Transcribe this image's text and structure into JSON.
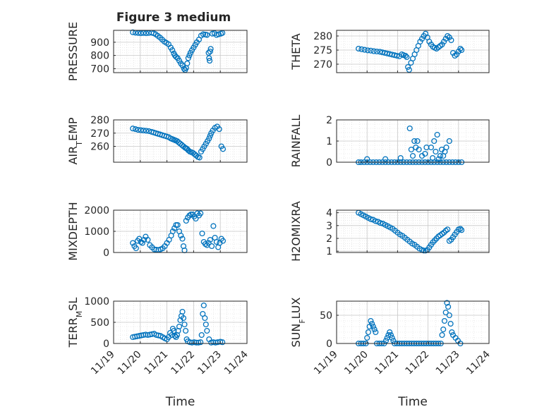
{
  "title": "Figure 3 medium",
  "x_tick_labels": [
    "11/19",
    "11/20",
    "11/21",
    "11/22",
    "11/23",
    "11/24"
  ],
  "x_label": "Time",
  "marker_color": "#0072BD",
  "chart_data": [
    {
      "type": "scatter",
      "ylabel": "PRESSURE",
      "ylim": [
        670,
        990
      ],
      "yticks": [
        700,
        800,
        900
      ],
      "xlim": [
        0,
        5
      ],
      "x": [
        0.72,
        0.82,
        0.92,
        1.02,
        1.12,
        1.22,
        1.32,
        1.42,
        1.5,
        1.58,
        1.66,
        1.74,
        1.82,
        1.9,
        1.98,
        2.06,
        2.14,
        2.2,
        2.26,
        2.3,
        2.34,
        2.4,
        2.46,
        2.52,
        2.58,
        2.64,
        2.68,
        2.72,
        2.76,
        2.8,
        2.84,
        2.88,
        2.94,
        3.0,
        3.06,
        3.12,
        3.2,
        3.28,
        3.36,
        3.44,
        3.5,
        3.56,
        3.58,
        3.6,
        3.62,
        3.64,
        3.7,
        3.78,
        3.86,
        3.94,
        4.02,
        4.08
      ],
      "y": [
        975,
        972,
        970,
        968,
        970,
        968,
        970,
        972,
        968,
        960,
        948,
        935,
        920,
        905,
        895,
        885,
        860,
        840,
        815,
        800,
        790,
        780,
        760,
        740,
        725,
        700,
        690,
        705,
        740,
        780,
        800,
        820,
        840,
        860,
        880,
        900,
        920,
        950,
        960,
        958,
        955,
        820,
        780,
        760,
        830,
        850,
        965,
        968,
        955,
        960,
        965,
        970
      ]
    },
    {
      "type": "scatter",
      "ylabel": "THETA",
      "ylim": [
        267,
        282
      ],
      "yticks": [
        270,
        275,
        280
      ],
      "xlim": [
        0,
        5
      ],
      "x": [
        0.72,
        0.82,
        0.92,
        1.02,
        1.12,
        1.22,
        1.32,
        1.42,
        1.5,
        1.58,
        1.66,
        1.74,
        1.82,
        1.9,
        1.98,
        2.06,
        2.14,
        2.2,
        2.26,
        2.3,
        2.34,
        2.38,
        2.44,
        2.5,
        2.56,
        2.62,
        2.68,
        2.74,
        2.8,
        2.86,
        2.92,
        2.98,
        3.04,
        3.1,
        3.16,
        3.22,
        3.28,
        3.34,
        3.4,
        3.46,
        3.52,
        3.58,
        3.64,
        3.7,
        3.76,
        3.82,
        3.88,
        3.94,
        4.0,
        4.06,
        4.1
      ],
      "y": [
        275.5,
        275.3,
        275.1,
        274.9,
        274.8,
        274.6,
        274.5,
        274.4,
        274.2,
        274.0,
        273.8,
        273.6,
        273.4,
        273.2,
        273.0,
        272.8,
        273.5,
        273.2,
        273.0,
        272.5,
        269.0,
        268.0,
        270.5,
        272.0,
        273.5,
        275.0,
        276.5,
        278.0,
        279.0,
        280.0,
        280.8,
        279.5,
        278.0,
        277.0,
        276.2,
        275.8,
        275.5,
        276.0,
        276.5,
        277.0,
        278.0,
        279.0,
        280.0,
        279.5,
        278.5,
        274.0,
        273.0,
        273.5,
        274.5,
        275.5,
        275.0
      ]
    },
    {
      "type": "scatter",
      "ylabel": "AIR_TEMP",
      "ylim": [
        248,
        280
      ],
      "yticks": [
        260,
        270,
        280
      ],
      "xlim": [
        0,
        5
      ],
      "x": [
        0.72,
        0.82,
        0.92,
        1.02,
        1.12,
        1.22,
        1.32,
        1.42,
        1.5,
        1.58,
        1.66,
        1.74,
        1.82,
        1.9,
        1.98,
        2.06,
        2.14,
        2.2,
        2.26,
        2.32,
        2.38,
        2.44,
        2.5,
        2.56,
        2.62,
        2.68,
        2.72,
        2.76,
        2.8,
        2.86,
        2.92,
        2.98,
        3.04,
        3.1,
        3.16,
        3.22,
        3.28,
        3.34,
        3.4,
        3.46,
        3.52,
        3.58,
        3.62,
        3.66,
        3.72,
        3.8,
        3.88,
        3.96,
        4.04,
        4.1
      ],
      "y": [
        273.5,
        273.0,
        272.5,
        272.2,
        272.0,
        271.8,
        271.5,
        271.0,
        270.5,
        270.0,
        269.5,
        269.0,
        268.5,
        268.0,
        267.5,
        267.0,
        266.0,
        265.5,
        265.0,
        264.5,
        264.0,
        263.0,
        262.0,
        261.0,
        260.0,
        259.0,
        258.5,
        258.0,
        257.0,
        256.0,
        255.5,
        255.0,
        254.0,
        253.0,
        252.0,
        251.5,
        256.0,
        258.0,
        260.0,
        262.0,
        264.0,
        266.0,
        268.0,
        270.0,
        272.0,
        274.0,
        275.0,
        273.0,
        260.0,
        258.0
      ]
    },
    {
      "type": "scatter",
      "ylabel": "RAINFALL",
      "ylim": [
        0,
        2
      ],
      "yticks": [
        0,
        1,
        2
      ],
      "xlim": [
        0,
        5
      ],
      "x": [
        0.72,
        0.8,
        0.9,
        1.0,
        1.1,
        1.2,
        1.3,
        1.4,
        1.5,
        1.6,
        1.7,
        1.8,
        1.9,
        2.0,
        2.1,
        2.2,
        2.3,
        2.4,
        2.5,
        2.6,
        2.7,
        2.8,
        2.9,
        3.0,
        3.1,
        3.2,
        3.3,
        3.4,
        3.5,
        3.6,
        3.7,
        3.8,
        3.9,
        4.0,
        4.1,
        1.0,
        1.6,
        2.1,
        2.4,
        2.45,
        2.5,
        2.55,
        2.6,
        2.65,
        2.7,
        2.8,
        2.9,
        2.95,
        3.1,
        3.15,
        3.2,
        3.3,
        3.4,
        3.5,
        3.6,
        3.7,
        3.55,
        3.45,
        3.25,
        3.35
      ],
      "y": [
        0,
        0,
        0,
        0,
        0,
        0,
        0,
        0,
        0,
        0,
        0,
        0,
        0,
        0,
        0,
        0,
        0,
        0,
        0,
        0,
        0,
        0,
        0,
        0,
        0,
        0,
        0,
        0,
        0,
        0,
        0,
        0,
        0,
        0,
        0,
        0.15,
        0.15,
        0.2,
        1.6,
        0.6,
        0.3,
        1.0,
        0.7,
        1.0,
        0.6,
        0.3,
        0.4,
        0.7,
        0.7,
        0.2,
        1.0,
        1.3,
        0.3,
        0.3,
        0.7,
        1.0,
        0.5,
        0.6,
        0.5,
        0.15
      ]
    },
    {
      "type": "scatter",
      "ylabel": "MIXDEPTH",
      "ylim": [
        0,
        2000
      ],
      "yticks": [
        0,
        1000,
        2000
      ],
      "xlim": [
        0,
        5
      ],
      "x": [
        0.72,
        0.78,
        0.84,
        0.9,
        0.96,
        1.02,
        1.08,
        1.14,
        1.2,
        1.28,
        1.36,
        1.44,
        1.52,
        1.6,
        1.68,
        1.76,
        1.84,
        1.92,
        2.0,
        2.08,
        2.16,
        2.22,
        2.28,
        2.34,
        2.4,
        2.46,
        2.52,
        2.58,
        2.62,
        2.66,
        2.72,
        2.78,
        2.84,
        2.9,
        2.96,
        3.02,
        3.08,
        3.14,
        3.2,
        3.26,
        3.32,
        3.38,
        3.44,
        3.5,
        3.56,
        3.62,
        3.68,
        3.74,
        3.8,
        3.86,
        3.92,
        3.98,
        4.04,
        4.1
      ],
      "y": [
        450,
        300,
        200,
        550,
        650,
        500,
        450,
        600,
        750,
        600,
        350,
        250,
        150,
        130,
        120,
        150,
        200,
        300,
        450,
        600,
        800,
        1000,
        1150,
        1300,
        1300,
        1000,
        800,
        650,
        300,
        100,
        1500,
        1650,
        1750,
        1800,
        1800,
        1700,
        1600,
        1850,
        1750,
        1850,
        900,
        500,
        400,
        350,
        450,
        600,
        300,
        1250,
        700,
        500,
        250,
        450,
        650,
        550
      ]
    },
    {
      "type": "scatter",
      "ylabel": "H2OMIXRA",
      "ylim": [
        0.9,
        4.2
      ],
      "yticks": [
        1,
        2,
        3,
        4
      ],
      "xlim": [
        0,
        5
      ],
      "x": [
        0.72,
        0.8,
        0.88,
        0.96,
        1.04,
        1.12,
        1.2,
        1.28,
        1.36,
        1.44,
        1.52,
        1.6,
        1.68,
        1.76,
        1.84,
        1.92,
        2.0,
        2.08,
        2.16,
        2.24,
        2.32,
        2.4,
        2.48,
        2.56,
        2.64,
        2.72,
        2.8,
        2.86,
        2.92,
        2.98,
        3.04,
        3.1,
        3.16,
        3.22,
        3.28,
        3.34,
        3.4,
        3.46,
        3.52,
        3.58,
        3.64,
        3.7,
        3.76,
        3.82,
        3.88,
        3.94,
        4.0,
        4.06,
        4.1
      ],
      "y": [
        4.0,
        3.9,
        3.8,
        3.7,
        3.6,
        3.5,
        3.45,
        3.35,
        3.3,
        3.2,
        3.15,
        3.05,
        2.95,
        2.85,
        2.75,
        2.6,
        2.45,
        2.3,
        2.2,
        2.05,
        1.9,
        1.75,
        1.6,
        1.5,
        1.35,
        1.2,
        1.1,
        1.05,
        1.05,
        1.1,
        1.3,
        1.5,
        1.7,
        1.85,
        2.0,
        2.15,
        2.25,
        2.35,
        2.45,
        2.6,
        2.7,
        1.8,
        1.9,
        2.1,
        2.3,
        2.5,
        2.7,
        2.75,
        2.65
      ]
    },
    {
      "type": "scatter",
      "ylabel": "TERR_MSL",
      "ylim": [
        0,
        1000
      ],
      "yticks": [
        0,
        500,
        1000
      ],
      "xlim": [
        0,
        5
      ],
      "x": [
        0.72,
        0.8,
        0.88,
        0.96,
        1.04,
        1.12,
        1.2,
        1.28,
        1.36,
        1.44,
        1.52,
        1.6,
        1.68,
        1.76,
        1.84,
        1.92,
        2.0,
        2.06,
        2.12,
        2.18,
        2.22,
        2.26,
        2.3,
        2.34,
        2.38,
        2.42,
        2.46,
        2.5,
        2.54,
        2.58,
        2.62,
        2.66,
        2.7,
        2.74,
        2.78,
        2.86,
        2.94,
        3.02,
        3.1,
        3.18,
        3.26,
        3.3,
        3.34,
        3.38,
        3.42,
        3.46,
        3.5,
        3.58,
        3.66,
        3.74,
        3.82,
        3.9,
        4.0,
        4.08
      ],
      "y": [
        150,
        160,
        170,
        180,
        190,
        200,
        210,
        200,
        210,
        220,
        230,
        200,
        190,
        180,
        150,
        120,
        100,
        150,
        250,
        200,
        350,
        300,
        180,
        150,
        200,
        300,
        400,
        550,
        650,
        750,
        600,
        450,
        300,
        100,
        50,
        30,
        20,
        30,
        20,
        20,
        30,
        200,
        700,
        900,
        600,
        450,
        300,
        100,
        20,
        30,
        20,
        30,
        40,
        30
      ]
    },
    {
      "type": "scatter",
      "ylabel": "SUN_FLUX",
      "ylim": [
        0,
        75
      ],
      "yticks": [
        0,
        50
      ],
      "xlim": [
        0,
        5
      ],
      "x": [
        0.72,
        0.8,
        0.88,
        0.96,
        1.0,
        1.04,
        1.08,
        1.12,
        1.16,
        1.2,
        1.24,
        1.28,
        1.32,
        1.4,
        1.48,
        1.56,
        1.62,
        1.66,
        1.7,
        1.74,
        1.78,
        1.82,
        1.86,
        1.9,
        1.98,
        2.06,
        2.14,
        2.22,
        2.3,
        2.38,
        2.46,
        2.54,
        2.62,
        2.7,
        2.78,
        2.86,
        2.94,
        3.02,
        3.1,
        3.18,
        3.26,
        3.34,
        3.42,
        3.46,
        3.5,
        3.54,
        3.58,
        3.62,
        3.66,
        3.7,
        3.74,
        3.78,
        3.82,
        3.9,
        3.98,
        4.06
      ],
      "y": [
        0,
        0,
        0,
        0,
        10,
        20,
        30,
        40,
        35,
        30,
        25,
        20,
        0,
        0,
        0,
        0,
        5,
        10,
        15,
        20,
        15,
        10,
        5,
        0,
        0,
        0,
        0,
        0,
        0,
        0,
        0,
        0,
        0,
        0,
        0,
        0,
        0,
        0,
        0,
        0,
        0,
        0,
        0,
        15,
        25,
        40,
        55,
        72,
        65,
        50,
        35,
        20,
        15,
        10,
        5,
        0
      ]
    }
  ]
}
